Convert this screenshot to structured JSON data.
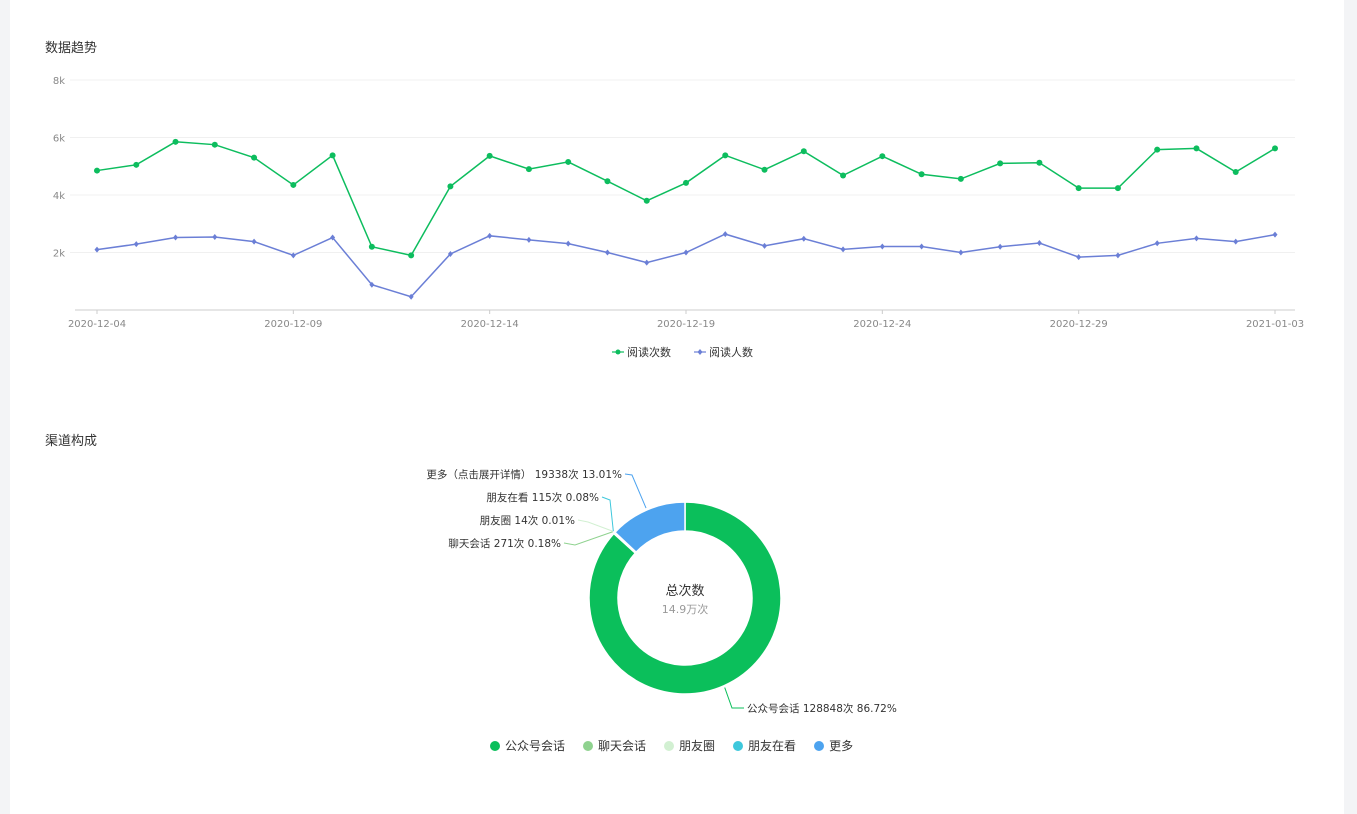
{
  "sections": {
    "trend_title": "数据趋势",
    "channel_title": "渠道构成"
  },
  "colors": {
    "read_count": "#0dbd5e",
    "reader_count": "#6b7fd6",
    "axis": "#cccccc",
    "grid": "#f0f0f0",
    "tick_text": "#888888"
  },
  "chart_data": [
    {
      "type": "line",
      "title": "数据趋势",
      "x": [
        "2020-12-04",
        "2020-12-05",
        "2020-12-06",
        "2020-12-07",
        "2020-12-08",
        "2020-12-09",
        "2020-12-10",
        "2020-12-11",
        "2020-12-12",
        "2020-12-13",
        "2020-12-14",
        "2020-12-15",
        "2020-12-16",
        "2020-12-17",
        "2020-12-18",
        "2020-12-19",
        "2020-12-20",
        "2020-12-21",
        "2020-12-22",
        "2020-12-23",
        "2020-12-24",
        "2020-12-25",
        "2020-12-26",
        "2020-12-27",
        "2020-12-28",
        "2020-12-29",
        "2020-12-30",
        "2020-12-31",
        "2021-01-01",
        "2021-01-02",
        "2021-01-03"
      ],
      "xticks": [
        "2020-12-04",
        "2020-12-09",
        "2020-12-14",
        "2020-12-19",
        "2020-12-24",
        "2020-12-29",
        "2021-01-03"
      ],
      "yticks": [
        "2k",
        "4k",
        "6k",
        "8k"
      ],
      "ylim": [
        0,
        8000
      ],
      "grid": true,
      "legend_position": "bottom-center",
      "series": [
        {
          "name": "阅读次数",
          "marker": "circle",
          "values": [
            4850,
            5050,
            5850,
            5750,
            5300,
            4350,
            5380,
            2200,
            1900,
            4300,
            5360,
            4900,
            5150,
            4480,
            3800,
            4420,
            5380,
            4880,
            5520,
            4680,
            5350,
            4720,
            4560,
            5100,
            5120,
            4240,
            4240,
            5580,
            5620,
            4800,
            5620
          ]
        },
        {
          "name": "阅读人数",
          "marker": "diamond",
          "values": [
            2100,
            2290,
            2520,
            2540,
            2380,
            1900,
            2520,
            880,
            460,
            1950,
            2580,
            2440,
            2310,
            2000,
            1650,
            2000,
            2640,
            2230,
            2480,
            2110,
            2210,
            2210,
            2000,
            2200,
            2330,
            1840,
            1900,
            2320,
            2490,
            2380,
            2620
          ]
        }
      ]
    },
    {
      "type": "pie",
      "title": "渠道构成",
      "center_title": "总次数",
      "center_value": "14.9万次",
      "legend_position": "bottom-center",
      "slices": [
        {
          "name": "公众号会话",
          "value": 128848,
          "percent": 86.72,
          "color": "#0bbf5b",
          "label": "公众号会话 128848次 86.72%"
        },
        {
          "name": "聊天会话",
          "value": 271,
          "percent": 0.18,
          "color": "#8fd28f",
          "label": "聊天会话 271次 0.18%"
        },
        {
          "name": "朋友圈",
          "value": 14,
          "percent": 0.01,
          "color": "#d2f0d2",
          "label": "朋友圈 14次 0.01%"
        },
        {
          "name": "朋友在看",
          "value": 115,
          "percent": 0.08,
          "color": "#3ec8dc",
          "label": "朋友在看 115次 0.08%"
        },
        {
          "name": "更多",
          "value": 19338,
          "percent": 13.01,
          "color": "#4da3ef",
          "label": "更多（点击展开详情） 19338次 13.01%"
        }
      ]
    }
  ]
}
